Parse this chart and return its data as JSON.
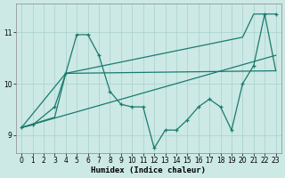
{
  "xlabel": "Humidex (Indice chaleur)",
  "bg_color": "#cce9e5",
  "line_color": "#1a7a6e",
  "grid_color": "#aed4cf",
  "xlim": [
    -0.5,
    23.5
  ],
  "ylim": [
    8.65,
    11.55
  ],
  "yticks": [
    9,
    10,
    11
  ],
  "xticks": [
    0,
    1,
    2,
    3,
    4,
    5,
    6,
    7,
    8,
    9,
    10,
    11,
    12,
    13,
    14,
    15,
    16,
    17,
    18,
    19,
    20,
    21,
    22,
    23
  ],
  "line_straight": {
    "x": [
      0,
      23
    ],
    "y": [
      9.15,
      10.55
    ]
  },
  "line_flat": {
    "x": [
      0,
      3,
      4,
      23
    ],
    "y": [
      9.15,
      9.35,
      10.2,
      10.25
    ]
  },
  "line_volatile": {
    "x": [
      0,
      1,
      3,
      4,
      5,
      6,
      7,
      8,
      9,
      10,
      11,
      12,
      13,
      14,
      15,
      16,
      17,
      18,
      19,
      20,
      21,
      22,
      23
    ],
    "y": [
      9.15,
      9.2,
      9.55,
      10.2,
      10.95,
      10.95,
      10.55,
      9.85,
      9.6,
      9.55,
      9.55,
      8.75,
      9.1,
      9.1,
      9.3,
      9.55,
      9.7,
      9.55,
      9.1,
      10.0,
      10.35,
      11.35,
      11.35
    ]
  },
  "line_top": {
    "x": [
      0,
      4,
      20,
      21,
      22,
      23
    ],
    "y": [
      9.15,
      10.2,
      10.9,
      11.35,
      11.35,
      10.25
    ]
  }
}
